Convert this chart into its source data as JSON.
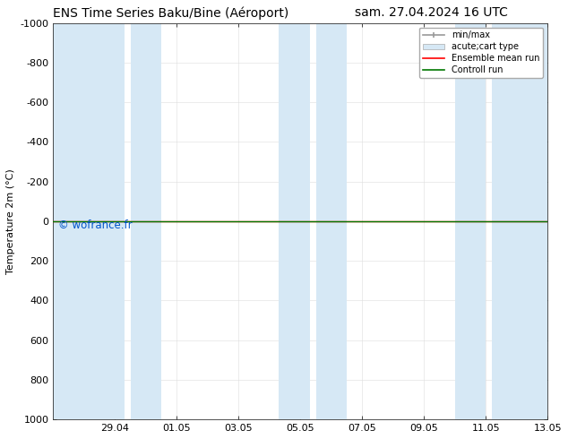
{
  "title_left": "ENS Time Series Baku/Bine (Aéroport)",
  "title_right": "sam. 27.04.2024 16 UTC",
  "ylabel": "Temperature 2m (°C)",
  "xlim": [
    0,
    16
  ],
  "ylim": [
    -1000,
    1000
  ],
  "yticks": [
    -1000,
    -800,
    -600,
    -400,
    -200,
    0,
    200,
    400,
    600,
    800,
    1000
  ],
  "ytick_labels": [
    "-1000",
    "-800",
    "-600",
    "-400",
    "-200",
    "0",
    "200",
    "400",
    "600",
    "800",
    "1000"
  ],
  "xtick_positions": [
    2,
    4,
    6,
    8,
    10,
    12,
    14,
    16
  ],
  "xtick_labels": [
    "29.04",
    "01.05",
    "03.05",
    "05.05",
    "07.05",
    "09.05",
    "11.05",
    "13.05"
  ],
  "watermark": "© wofrance.fr",
  "watermark_color": "#0055cc",
  "bg_color": "#ffffff",
  "plot_bg_color": "#ffffff",
  "ensemble_mean_color": "#ff0000",
  "control_run_color": "#007700",
  "minmax_color": "#999999",
  "band_color": "#d6e8f5",
  "band_alpha": 1.0,
  "legend_labels": [
    "min/max",
    "acute;cart type",
    "Ensemble mean run",
    "Controll run"
  ],
  "title_fontsize": 10,
  "axis_fontsize": 8,
  "tick_fontsize": 8,
  "shade_bands": [
    [
      0.0,
      2.3
    ],
    [
      2.5,
      3.5
    ],
    [
      7.3,
      8.3
    ],
    [
      8.5,
      9.5
    ],
    [
      13.0,
      14.0
    ],
    [
      14.2,
      16.0
    ]
  ]
}
